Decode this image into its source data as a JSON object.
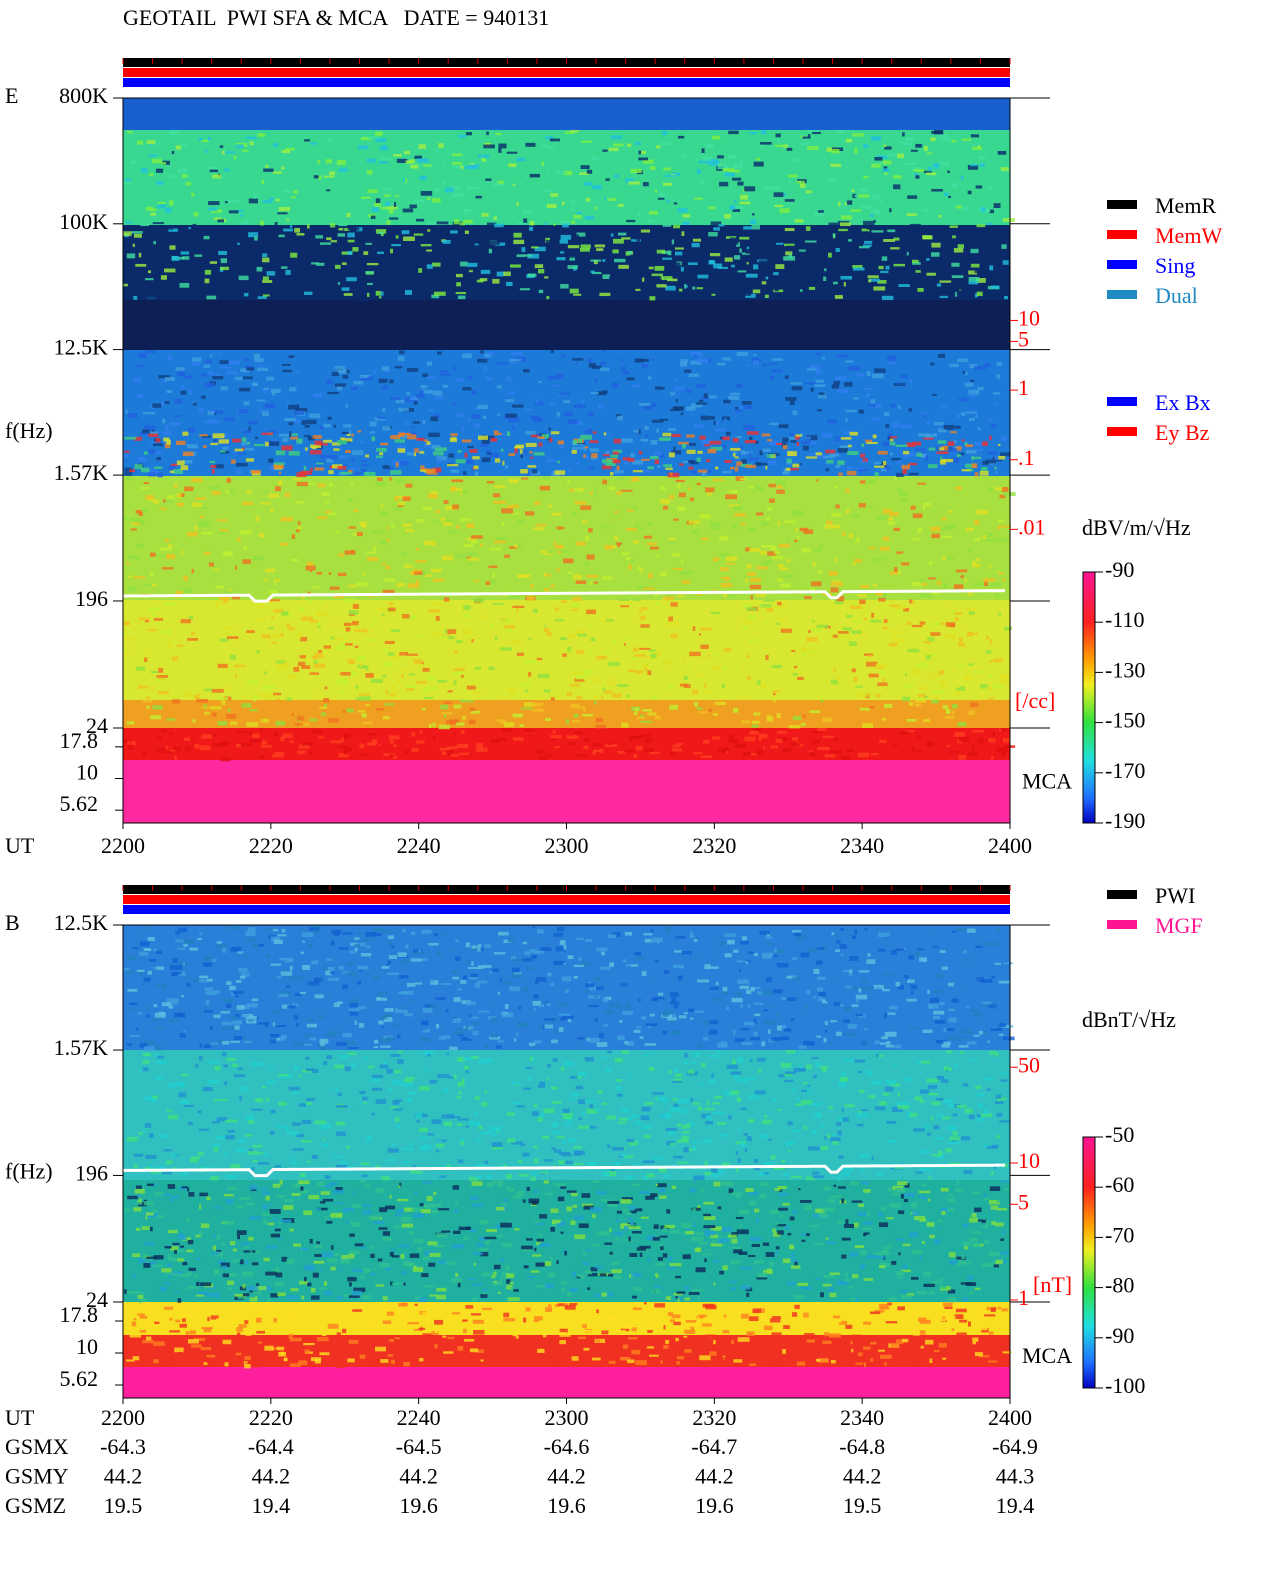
{
  "title": "GEOTAIL  PWI SFA & MCA   DATE = 940131",
  "chart_data": [
    {
      "type": "spectrogram",
      "panel_label": "E",
      "y_label": "f(Hz)",
      "x_label": "UT",
      "xlim": [
        2200,
        2400
      ],
      "xticks": [
        2200,
        2220,
        2240,
        2300,
        2320,
        2340,
        2400
      ],
      "ylim": [
        24,
        800000
      ],
      "log_y": true,
      "yticks": [
        {
          "value": 800000,
          "label": "800K"
        },
        {
          "value": 100000,
          "label": "100K"
        },
        {
          "value": 12500,
          "label": "12.5K"
        },
        {
          "value": 1570,
          "label": "1.57K"
        },
        196,
        24
      ],
      "mca_label": "MCA",
      "mca_ticks": [
        17.8,
        10,
        5.62
      ],
      "colorbar": {
        "label": "dBV/m/√Hz",
        "lim": [
          -190,
          -90
        ],
        "ticks": [
          -90,
          -110,
          -130,
          -150,
          -170,
          -190
        ]
      },
      "side_scale": {
        "ticks": [
          10,
          5,
          1,
          {
            "value": 0.1,
            "label": ".1"
          },
          {
            "value": 0.01,
            "label": ".01"
          }
        ],
        "unit": "[/cc]"
      },
      "legends": [
        [
          {
            "name": "MemR",
            "color": "#000000"
          },
          {
            "name": "MemW",
            "color": "#ff0000"
          },
          {
            "name": "Sing",
            "color": "#0000ff"
          },
          {
            "name": "Dual",
            "color": "#1e8bc3"
          }
        ],
        [
          {
            "name": "Ex Bx",
            "color": "#0000ff"
          },
          {
            "name": "Ey Bz",
            "color": "#ff0000"
          }
        ]
      ]
    },
    {
      "type": "spectrogram",
      "panel_label": "B",
      "y_label": "f(Hz)",
      "x_label": "UT",
      "xlim": [
        2200,
        2400
      ],
      "xticks": [
        2200,
        2220,
        2240,
        2300,
        2320,
        2340,
        2400
      ],
      "ylim": [
        24,
        12500
      ],
      "log_y": true,
      "yticks": [
        {
          "value": 12500,
          "label": "12.5K"
        },
        {
          "value": 1570,
          "label": "1.57K"
        },
        196,
        24
      ],
      "mca_label": "MCA",
      "mca_ticks": [
        17.8,
        10,
        5.62
      ],
      "colorbar": {
        "label": "dBnT/√Hz",
        "lim": [
          -100,
          -50
        ],
        "ticks": [
          -50,
          -60,
          -70,
          -80,
          -90,
          -100
        ]
      },
      "side_scale": {
        "ticks": [
          50,
          10,
          5,
          1
        ],
        "unit": "[nT]"
      },
      "legends": [
        [
          {
            "name": "PWI",
            "color": "#000000"
          },
          {
            "name": "MGF",
            "color": "#ff1493"
          }
        ]
      ],
      "orbit": [
        {
          "name": "GSMX",
          "values": [
            -64.3,
            -64.4,
            -64.5,
            -64.6,
            -64.7,
            -64.8,
            -64.9
          ]
        },
        {
          "name": "GSMY",
          "values": [
            44.2,
            44.2,
            44.2,
            44.2,
            44.2,
            44.2,
            44.3
          ]
        },
        {
          "name": "GSMZ",
          "values": [
            19.5,
            19.4,
            19.6,
            19.6,
            19.6,
            19.5,
            19.4
          ]
        }
      ]
    }
  ]
}
